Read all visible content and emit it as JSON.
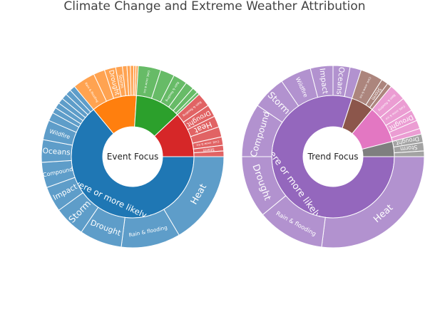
{
  "chart_data": {
    "type": "sunburst",
    "title": "Climate Change and Extreme Weather Attribution",
    "charts": [
      {
        "center": "Event Focus",
        "inner": [
          {
            "label": "More severe or more likely to occur",
            "value": 64,
            "color": "#1f77b4"
          },
          {
            "label": "",
            "value": 12,
            "color": "#ff7f0e"
          },
          {
            "label": "",
            "value": 12,
            "color": "#2ca02c"
          },
          {
            "label": "",
            "value": 12,
            "color": "#d62728"
          }
        ],
        "outer": [
          {
            "parent": 0,
            "label": "Heat",
            "value": 16.5
          },
          {
            "parent": 0,
            "label": "Rain & flooding",
            "value": 10.5
          },
          {
            "parent": 0,
            "label": "Drought",
            "value": 7.5
          },
          {
            "parent": 0,
            "label": "Storm",
            "value": 5.5
          },
          {
            "parent": 0,
            "label": "Impact",
            "value": 4.5
          },
          {
            "parent": 0,
            "label": "Compound",
            "value": 4.5
          },
          {
            "parent": 0,
            "label": "Oceans",
            "value": 4
          },
          {
            "parent": 0,
            "label": "Wildfire",
            "value": 3.5
          },
          {
            "parent": 0,
            "label": "",
            "value": 1.5
          },
          {
            "parent": 0,
            "label": "",
            "value": 1
          },
          {
            "parent": 0,
            "label": "",
            "value": 1
          },
          {
            "parent": 0,
            "label": "",
            "value": 1
          },
          {
            "parent": 0,
            "label": "",
            "value": 1
          },
          {
            "parent": 0,
            "label": "",
            "value": 1
          },
          {
            "parent": 0,
            "label": "",
            "value": 1
          },
          {
            "parent": 1,
            "label": "Rain & flooding",
            "value": 4
          },
          {
            "parent": 1,
            "label": "",
            "value": 2
          },
          {
            "parent": 1,
            "label": "Drought",
            "value": 2
          },
          {
            "parent": 1,
            "label": "Storm",
            "value": 1.2
          },
          {
            "parent": 1,
            "label": "",
            "value": 0.8
          },
          {
            "parent": 1,
            "label": "",
            "value": 0.6
          },
          {
            "parent": 1,
            "label": "",
            "value": 0.6
          },
          {
            "parent": 1,
            "label": "",
            "value": 0.4
          },
          {
            "parent": 1,
            "label": "",
            "value": 0.4
          },
          {
            "parent": 2,
            "label": "Cold, snow & ice",
            "value": 4
          },
          {
            "parent": 2,
            "label": "",
            "value": 2.5
          },
          {
            "parent": 2,
            "label": "Rain & flooding",
            "value": 2.5
          },
          {
            "parent": 2,
            "label": "",
            "value": 1.5
          },
          {
            "parent": 2,
            "label": "",
            "value": 1
          },
          {
            "parent": 2,
            "label": "",
            "value": 0.5
          },
          {
            "parent": 3,
            "label": "Rain & flooding",
            "value": 2.5
          },
          {
            "parent": 3,
            "label": "Drought",
            "value": 2.2
          },
          {
            "parent": 3,
            "label": "Heat",
            "value": 2
          },
          {
            "parent": 3,
            "label": "",
            "value": 1.8
          },
          {
            "parent": 3,
            "label": "Cold, snow & ice",
            "value": 1.5
          },
          {
            "parent": 3,
            "label": "Storm",
            "value": 1
          },
          {
            "parent": 3,
            "label": "",
            "value": 1
          }
        ]
      },
      {
        "center": "Trend Focus",
        "inner": [
          {
            "label": "More severe or more likely to occur",
            "value": 80,
            "color": "#9467bd"
          },
          {
            "label": "",
            "value": 6,
            "color": "#8c564b"
          },
          {
            "label": "",
            "value": 10,
            "color": "#e377c2"
          },
          {
            "label": "",
            "value": 4,
            "color": "#7f7f7f"
          }
        ],
        "outer": [
          {
            "parent": 0,
            "label": "Heat",
            "value": 27
          },
          {
            "parent": 0,
            "label": "Rain & flooding",
            "value": 12
          },
          {
            "parent": 0,
            "label": "Drought",
            "value": 11
          },
          {
            "parent": 0,
            "label": "Compound",
            "value": 9.5
          },
          {
            "parent": 0,
            "label": "Storm",
            "value": 6
          },
          {
            "parent": 0,
            "label": "Wildfire",
            "value": 5.5
          },
          {
            "parent": 0,
            "label": "Impact",
            "value": 4
          },
          {
            "parent": 0,
            "label": "Oceans",
            "value": 3
          },
          {
            "parent": 0,
            "label": "",
            "value": 2
          },
          {
            "parent": 1,
            "label": "Cold, snow & ice",
            "value": 4
          },
          {
            "parent": 1,
            "label": "Storm",
            "value": 1.2
          },
          {
            "parent": 1,
            "label": "",
            "value": 0.8
          },
          {
            "parent": 2,
            "label": "Rain & flooding",
            "value": 3
          },
          {
            "parent": 2,
            "label": "Cold, snow & ice",
            "value": 2.5
          },
          {
            "parent": 2,
            "label": "Drought",
            "value": 2
          },
          {
            "parent": 2,
            "label": "",
            "value": 1.5
          },
          {
            "parent": 2,
            "label": "",
            "value": 1
          },
          {
            "parent": 3,
            "label": "Drought",
            "value": 1.5
          },
          {
            "parent": 3,
            "label": "Storm",
            "value": 1.5
          },
          {
            "parent": 3,
            "label": "",
            "value": 1
          }
        ]
      }
    ]
  }
}
